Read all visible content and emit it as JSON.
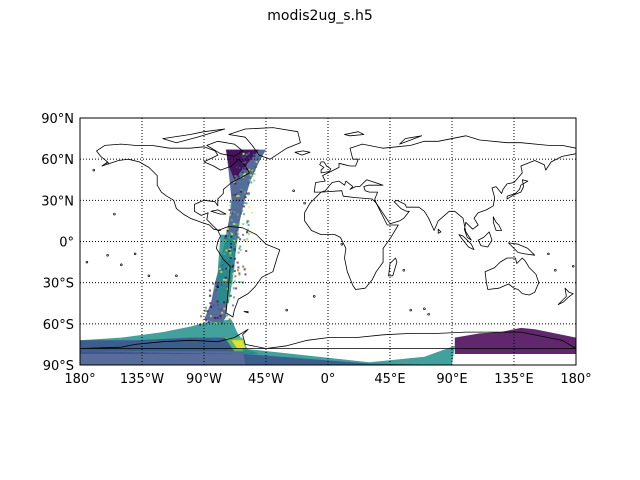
{
  "title": "modis2ug_s.h5",
  "map": {
    "projection": "PlateCarree",
    "lon_range": [
      -180,
      180
    ],
    "lat_range": [
      -90,
      90
    ],
    "grid": "dotted",
    "lat_ticks": [
      90,
      60,
      30,
      0,
      -30,
      -60,
      -90
    ],
    "lon_ticks": [
      -180,
      -135,
      -90,
      -45,
      0,
      45,
      90,
      135,
      180
    ],
    "lat_labels": [
      "90°N",
      "60°N",
      "30°N",
      "0°",
      "30°S",
      "60°S",
      "90°S"
    ],
    "lon_labels": [
      "180°",
      "135°W",
      "90°W",
      "45°W",
      "0°",
      "45°E",
      "90°E",
      "135°E",
      "180°"
    ],
    "colormap": "viridis",
    "swath_colors": [
      "#440154",
      "#3b528b",
      "#21918c",
      "#5ec962",
      "#fde725"
    ]
  }
}
